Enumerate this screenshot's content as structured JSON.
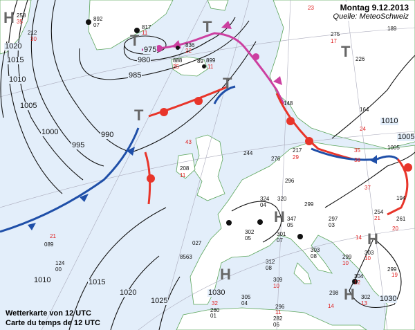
{
  "header": {
    "date": "Montag 9.12.2013",
    "source": "Quelle: MeteoSchweiz"
  },
  "caption": {
    "de": "Wetterkarte von 12 UTC",
    "fr": "Carte du temps de 12 UTC"
  },
  "colors": {
    "sea": "#e3eefa",
    "land": "#ffffff",
    "warm_front": "#e8352a",
    "cold_front": "#1f4fa8",
    "occlusion": "#cc3fa0",
    "high_low_marker": "#666666",
    "coast": "#5aa55a"
  },
  "pressure_centers": [
    {
      "type": "H",
      "label": "H"
    },
    {
      "type": "T",
      "label": "T"
    },
    {
      "type": "T",
      "label": "T"
    },
    {
      "type": "T",
      "label": "T"
    },
    {
      "type": "T",
      "label": "T"
    },
    {
      "type": "H",
      "label": "H"
    },
    {
      "type": "H",
      "label": "H"
    },
    {
      "type": "H",
      "label": "H"
    },
    {
      "type": "H",
      "label": "H"
    },
    {
      "type": "T",
      "label": "T"
    }
  ],
  "isobar_labels": [
    "975",
    "980",
    "985",
    "990",
    "995",
    "1000",
    "1005",
    "1010",
    "1015",
    "1020",
    "1015",
    "1020",
    "1025",
    "1030",
    "1030",
    "1010",
    "1005",
    "1010"
  ],
  "stations": [
    {
      "text": "258"
    },
    {
      "text": "35",
      "red": true
    },
    {
      "text": "212"
    },
    {
      "text": "30",
      "red": true
    },
    {
      "text": "892"
    },
    {
      "text": "07"
    },
    {
      "text": "817"
    },
    {
      "text": "11",
      "red": true
    },
    {
      "text": "836"
    },
    {
      "text": "22",
      "red": true
    },
    {
      "text": "888"
    },
    {
      "text": "25",
      "red": true
    },
    {
      "text": "89"
    },
    {
      "text": "899"
    },
    {
      "text": "11",
      "red": true
    },
    {
      "text": "23",
      "red": true
    },
    {
      "text": "275"
    },
    {
      "text": "17",
      "red": true
    },
    {
      "text": "226"
    },
    {
      "text": "189"
    },
    {
      "text": "148"
    },
    {
      "text": "164"
    },
    {
      "text": "24",
      "red": true
    },
    {
      "text": "217"
    },
    {
      "text": "29",
      "red": true
    },
    {
      "text": "244"
    },
    {
      "text": "276"
    },
    {
      "text": "296"
    },
    {
      "text": "208"
    },
    {
      "text": "11",
      "red": true
    },
    {
      "text": "43",
      "red": true
    },
    {
      "text": "324"
    },
    {
      "text": "04"
    },
    {
      "text": "320"
    },
    {
      "text": "347"
    },
    {
      "text": "05"
    },
    {
      "text": "297"
    },
    {
      "text": "03"
    },
    {
      "text": "302"
    },
    {
      "text": "05"
    },
    {
      "text": "301"
    },
    {
      "text": "07"
    },
    {
      "text": "303"
    },
    {
      "text": "08"
    },
    {
      "text": "312"
    },
    {
      "text": "08"
    },
    {
      "text": "309"
    },
    {
      "text": "10",
      "red": true
    },
    {
      "text": "299"
    },
    {
      "text": "10",
      "red": true
    },
    {
      "text": "299"
    },
    {
      "text": "14",
      "red": true
    },
    {
      "text": "304"
    },
    {
      "text": "12",
      "red": true
    },
    {
      "text": "302"
    },
    {
      "text": "13",
      "red": true
    },
    {
      "text": "303"
    },
    {
      "text": "10",
      "red": true
    },
    {
      "text": "254"
    },
    {
      "text": "21",
      "red": true
    },
    {
      "text": "261"
    },
    {
      "text": "20",
      "red": true
    },
    {
      "text": "194"
    },
    {
      "text": "299"
    },
    {
      "text": "19",
      "red": true
    },
    {
      "text": "305"
    },
    {
      "text": "04"
    },
    {
      "text": "296"
    },
    {
      "text": "11",
      "red": true
    },
    {
      "text": "282"
    },
    {
      "text": "06"
    },
    {
      "text": "280"
    },
    {
      "text": "01"
    },
    {
      "text": "32",
      "red": true
    },
    {
      "text": "089"
    },
    {
      "text": "21",
      "red": true
    },
    {
      "text": "124"
    },
    {
      "text": "00"
    },
    {
      "text": "027"
    },
    {
      "text": "8563"
    },
    {
      "text": "298"
    },
    {
      "text": "14",
      "red": true
    },
    {
      "text": "35",
      "red": true
    },
    {
      "text": "38",
      "red": true
    },
    {
      "text": "1005"
    },
    {
      "text": "37",
      "red": true
    }
  ]
}
